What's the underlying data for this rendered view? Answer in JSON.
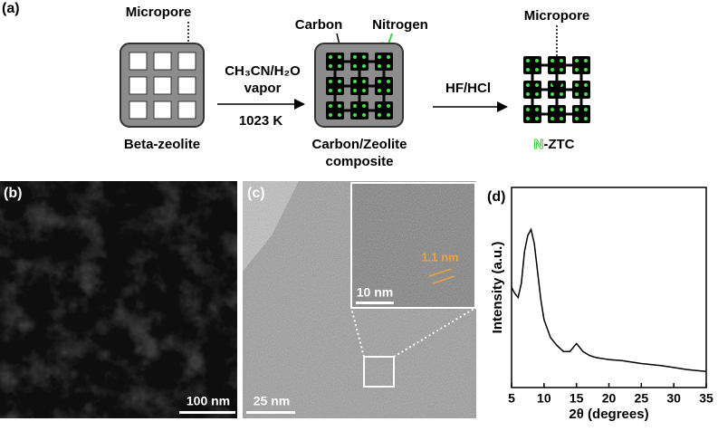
{
  "panels": {
    "a": {
      "label": "(a)",
      "zeolite": {
        "name": "Beta-zeolite",
        "pore_label": "Micropore"
      },
      "step1": {
        "reagent": "CH₃CN/H₂O",
        "phase": "vapor",
        "temperature": "1023 K"
      },
      "composite": {
        "name_line1": "Carbon/Zeolite",
        "name_line2": "composite",
        "carbon_label": "Carbon",
        "nitrogen_label": "Nitrogen"
      },
      "step2": {
        "reagent": "HF/HCl"
      },
      "product": {
        "name_prefix": "N",
        "name_suffix": "-ZTC",
        "pore_label": "Micropore"
      }
    },
    "b": {
      "label": "(b)",
      "scale_bar": "100 nm"
    },
    "c": {
      "label": "(c)",
      "scale_bar": "25 nm",
      "inset_scale_bar": "10 nm",
      "inset_annotation": "1.1 nm"
    },
    "d": {
      "label": "(d)"
    }
  },
  "chart_data": {
    "type": "line",
    "xlabel": "2θ (degrees)",
    "ylabel": "Intensity (a.u.)",
    "color": "#000000",
    "x": [
      5,
      5.5,
      6,
      6.5,
      7,
      7.5,
      8,
      8.5,
      9,
      9.5,
      10,
      11,
      12,
      13,
      14,
      14.5,
      15,
      15.5,
      16,
      17,
      18,
      20,
      22,
      25,
      28,
      30,
      32,
      35
    ],
    "values": [
      50,
      47,
      45,
      52,
      68,
      76,
      79,
      72,
      58,
      44,
      34,
      25,
      21,
      18,
      18,
      20,
      22,
      20,
      18,
      16,
      15,
      14,
      13.5,
      12,
      11,
      10,
      9,
      8
    ],
    "xlim": [
      5,
      35
    ],
    "xticks": [
      5,
      10,
      15,
      20,
      25,
      30,
      35
    ],
    "ylim": [
      0,
      100
    ]
  }
}
